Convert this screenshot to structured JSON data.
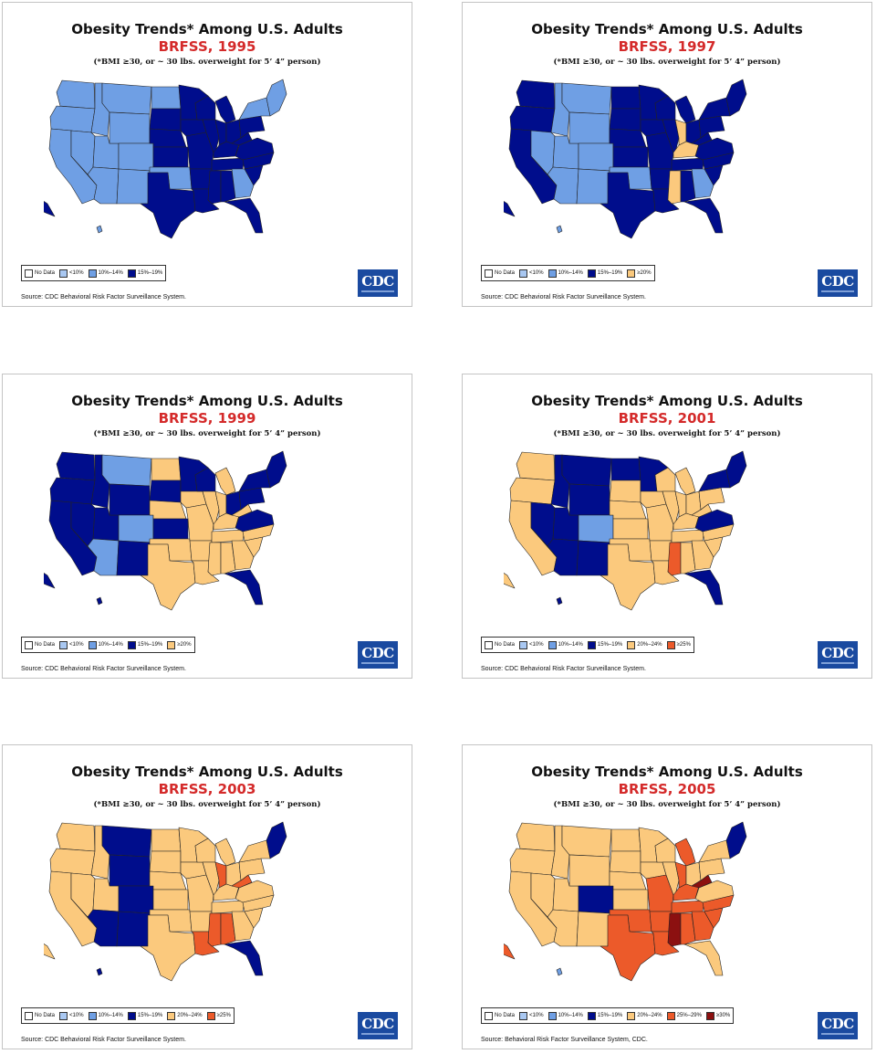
{
  "palette": {
    "no_data": "#ffffff",
    "lt10": "#a9c8f2",
    "p10_14": "#6f9fe4",
    "p15_19": "#000d8c",
    "p20_24": "#fbc97d",
    "p25_29": "#ec5a2a",
    "ge30": "#8c1010"
  },
  "panels": [
    {
      "title": "Obesity Trends* Among U.S. Adults",
      "subtitle": "BRFSS, 1995",
      "note": "(*BMI ≥30, or ~ 30 lbs. overweight for 5’ 4” person)",
      "legend": [
        {
          "label": "No Data",
          "color": "no_data"
        },
        {
          "label": "<10%",
          "color": "lt10"
        },
        {
          "label": "10%–14%",
          "color": "p10_14"
        },
        {
          "label": "15%–19%",
          "color": "p15_19"
        }
      ],
      "logo": "CDC",
      "source": "Source: CDC Behavioral Risk Factor Surveillance System.",
      "regions": {
        "wa": "p10_14",
        "or": "p10_14",
        "ca": "p10_14",
        "id": "p10_14",
        "nv": "p10_14",
        "mt": "p10_14",
        "ut": "p10_14",
        "az": "p10_14",
        "wy": "p10_14",
        "co": "p10_14",
        "nm": "p10_14",
        "nd": "p10_14",
        "sd": "p15_19",
        "ne": "p15_19",
        "ks": "p15_19",
        "ok": "p10_14",
        "tx": "p15_19",
        "mn": "p15_19",
        "ia": "p15_19",
        "mo": "p15_19",
        "ar": "p15_19",
        "la": "p15_19",
        "wi": "p15_19",
        "il": "p15_19",
        "mi": "p15_19",
        "in": "p15_19",
        "oh": "p15_19",
        "ky": "p15_19",
        "tn": "p15_19",
        "ms": "p15_19",
        "al": "p15_19",
        "ga": "p10_14",
        "fl": "p15_19",
        "sc": "p15_19",
        "nc": "p15_19",
        "va": "p15_19",
        "wv": "p15_19",
        "pa": "p15_19",
        "ny": "p10_14",
        "ne_states": "p10_14",
        "ak": "p15_19",
        "hi": "p10_14"
      }
    },
    {
      "title": "Obesity Trends* Among U.S. Adults",
      "subtitle": "BRFSS, 1997",
      "note": "(*BMI ≥30, or ~ 30 lbs. overweight for 5’ 4” person)",
      "legend": [
        {
          "label": "No Data",
          "color": "no_data"
        },
        {
          "label": "<10%",
          "color": "lt10"
        },
        {
          "label": "10%–14%",
          "color": "p10_14"
        },
        {
          "label": "15%–19%",
          "color": "p15_19"
        },
        {
          "label": "≥20%",
          "color": "p20_24"
        }
      ],
      "logo": "CDC",
      "source": "Source: CDC Behavioral Risk Factor Surveillance System.",
      "regions": {
        "wa": "p15_19",
        "or": "p15_19",
        "ca": "p15_19",
        "id": "p10_14",
        "nv": "p10_14",
        "mt": "p10_14",
        "ut": "p10_14",
        "az": "p10_14",
        "wy": "p10_14",
        "co": "p10_14",
        "nm": "p10_14",
        "nd": "p15_19",
        "sd": "p15_19",
        "ne": "p15_19",
        "ks": "p15_19",
        "ok": "p10_14",
        "tx": "p15_19",
        "mn": "p15_19",
        "ia": "p15_19",
        "mo": "p15_19",
        "ar": "p15_19",
        "la": "p15_19",
        "wi": "p15_19",
        "il": "p15_19",
        "mi": "p15_19",
        "in": "p20_24",
        "oh": "p15_19",
        "ky": "p20_24",
        "tn": "p15_19",
        "ms": "p20_24",
        "al": "p15_19",
        "ga": "p10_14",
        "fl": "p15_19",
        "sc": "p15_19",
        "nc": "p15_19",
        "va": "p15_19",
        "wv": "p15_19",
        "pa": "p15_19",
        "ny": "p15_19",
        "ne_states": "p15_19",
        "ak": "p15_19",
        "hi": "p10_14"
      }
    },
    {
      "title": "Obesity Trends* Among U.S. Adults",
      "subtitle": "BRFSS, 1999",
      "note": "(*BMI ≥30, or ~ 30 lbs. overweight for 5’ 4” person)",
      "legend": [
        {
          "label": "No Data",
          "color": "no_data"
        },
        {
          "label": "<10%",
          "color": "lt10"
        },
        {
          "label": "10%–14%",
          "color": "p10_14"
        },
        {
          "label": "15%–19%",
          "color": "p15_19"
        },
        {
          "label": "≥20%",
          "color": "p20_24"
        }
      ],
      "logo": "CDC",
      "source": "Source: CDC Behavioral Risk Factor Surveillance System.",
      "regions": {
        "wa": "p15_19",
        "or": "p15_19",
        "ca": "p15_19",
        "id": "p15_19",
        "nv": "p15_19",
        "mt": "p10_14",
        "ut": "p15_19",
        "az": "p10_14",
        "wy": "p15_19",
        "co": "p10_14",
        "nm": "p15_19",
        "nd": "p20_24",
        "sd": "p15_19",
        "ne": "p20_24",
        "ks": "p15_19",
        "ok": "p20_24",
        "tx": "p20_24",
        "mn": "p15_19",
        "ia": "p20_24",
        "mo": "p20_24",
        "ar": "p20_24",
        "la": "p20_24",
        "wi": "p15_19",
        "il": "p20_24",
        "mi": "p20_24",
        "in": "p20_24",
        "oh": "p15_19",
        "ky": "p20_24",
        "tn": "p20_24",
        "ms": "p20_24",
        "al": "p20_24",
        "ga": "p20_24",
        "fl": "p15_19",
        "sc": "p20_24",
        "nc": "p20_24",
        "va": "p15_19",
        "wv": "p20_24",
        "pa": "p15_19",
        "ny": "p15_19",
        "ne_states": "p15_19",
        "ak": "p15_19",
        "hi": "p15_19"
      }
    },
    {
      "title": "Obesity Trends* Among U.S. Adults",
      "subtitle": "BRFSS, 2001",
      "note": "(*BMI ≥30, or ~ 30 lbs. overweight for 5’ 4” person)",
      "legend": [
        {
          "label": "No Data",
          "color": "no_data"
        },
        {
          "label": "<10%",
          "color": "lt10"
        },
        {
          "label": "10%–14%",
          "color": "p10_14"
        },
        {
          "label": "15%–19%",
          "color": "p15_19"
        },
        {
          "label": "20%–24%",
          "color": "p20_24"
        },
        {
          "label": "≥25%",
          "color": "p25_29"
        }
      ],
      "logo": "CDC",
      "source": "Source: CDC Behavioral Risk Factor Surveillance System.",
      "regions": {
        "wa": "p20_24",
        "or": "p20_24",
        "ca": "p20_24",
        "id": "p15_19",
        "nv": "p15_19",
        "mt": "p15_19",
        "ut": "p15_19",
        "az": "p15_19",
        "wy": "p15_19",
        "co": "p10_14",
        "nm": "p15_19",
        "nd": "p15_19",
        "sd": "p20_24",
        "ne": "p20_24",
        "ks": "p20_24",
        "ok": "p20_24",
        "tx": "p20_24",
        "mn": "p15_19",
        "ia": "p20_24",
        "mo": "p20_24",
        "ar": "p20_24",
        "la": "p20_24",
        "wi": "p20_24",
        "il": "p20_24",
        "mi": "p20_24",
        "in": "p20_24",
        "oh": "p20_24",
        "ky": "p20_24",
        "tn": "p20_24",
        "ms": "p25_29",
        "al": "p20_24",
        "ga": "p20_24",
        "fl": "p15_19",
        "sc": "p20_24",
        "nc": "p20_24",
        "va": "p15_19",
        "wv": "p20_24",
        "pa": "p20_24",
        "ny": "p15_19",
        "ne_states": "p15_19",
        "ak": "p20_24",
        "hi": "p15_19"
      }
    },
    {
      "title": "Obesity Trends* Among U.S. Adults",
      "subtitle": "BRFSS, 2003",
      "note": "(*BMI ≥30, or ~ 30 lbs. overweight for 5’ 4” person)",
      "legend": [
        {
          "label": "No Data",
          "color": "no_data"
        },
        {
          "label": "<10%",
          "color": "lt10"
        },
        {
          "label": "10%–14%",
          "color": "p10_14"
        },
        {
          "label": "15%–19%",
          "color": "p15_19"
        },
        {
          "label": "20%–24%",
          "color": "p20_24"
        },
        {
          "label": "≥25%",
          "color": "p25_29"
        }
      ],
      "logo": "CDC",
      "source": "Source: CDC Behavioral Risk Factor Surveillance System.",
      "regions": {
        "wa": "p20_24",
        "or": "p20_24",
        "ca": "p20_24",
        "id": "p20_24",
        "nv": "p20_24",
        "mt": "p15_19",
        "ut": "p20_24",
        "az": "p15_19",
        "wy": "p15_19",
        "co": "p15_19",
        "nm": "p15_19",
        "nd": "p20_24",
        "sd": "p20_24",
        "ne": "p20_24",
        "ks": "p20_24",
        "ok": "p20_24",
        "tx": "p20_24",
        "mn": "p20_24",
        "ia": "p20_24",
        "mo": "p20_24",
        "ar": "p20_24",
        "la": "p25_29",
        "wi": "p20_24",
        "il": "p20_24",
        "mi": "p20_24",
        "in": "p25_29",
        "oh": "p20_24",
        "ky": "p20_24",
        "tn": "p20_24",
        "ms": "p25_29",
        "al": "p25_29",
        "ga": "p20_24",
        "fl": "p15_19",
        "sc": "p20_24",
        "nc": "p20_24",
        "va": "p20_24",
        "wv": "p25_29",
        "pa": "p20_24",
        "ny": "p20_24",
        "ne_states": "p15_19",
        "ak": "p20_24",
        "hi": "p15_19"
      }
    },
    {
      "title": "Obesity Trends* Among U.S. Adults",
      "subtitle": "BRFSS, 2005",
      "note": "(*BMI ≥30, or ~ 30 lbs. overweight for 5’ 4” person)",
      "legend": [
        {
          "label": "No Data",
          "color": "no_data"
        },
        {
          "label": "<10%",
          "color": "lt10"
        },
        {
          "label": "10%–14%",
          "color": "p10_14"
        },
        {
          "label": "15%–19%",
          "color": "p15_19"
        },
        {
          "label": "20%–24%",
          "color": "p20_24"
        },
        {
          "label": "25%–29%",
          "color": "p25_29"
        },
        {
          "label": "≥30%",
          "color": "ge30"
        }
      ],
      "logo": "CDC",
      "source": "Source: Behavioral Risk Factor Surveillance System, CDC.",
      "regions": {
        "wa": "p20_24",
        "or": "p20_24",
        "ca": "p20_24",
        "id": "p20_24",
        "nv": "p20_24",
        "mt": "p20_24",
        "ut": "p20_24",
        "az": "p20_24",
        "wy": "p20_24",
        "co": "p15_19",
        "nm": "p20_24",
        "nd": "p20_24",
        "sd": "p20_24",
        "ne": "p20_24",
        "ks": "p20_24",
        "ok": "p25_29",
        "tx": "p25_29",
        "mn": "p20_24",
        "ia": "p20_24",
        "mo": "p25_29",
        "ar": "p25_29",
        "la": "p25_29",
        "wi": "p20_24",
        "il": "p20_24",
        "mi": "p25_29",
        "in": "p25_29",
        "oh": "p20_24",
        "ky": "p25_29",
        "tn": "p25_29",
        "ms": "ge30",
        "al": "p25_29",
        "ga": "p25_29",
        "fl": "p20_24",
        "sc": "p25_29",
        "nc": "p25_29",
        "va": "p20_24",
        "wv": "ge30",
        "pa": "p20_24",
        "ny": "p20_24",
        "ne_states": "p15_19",
        "ak": "p25_29",
        "hi": "p10_14"
      }
    }
  ]
}
